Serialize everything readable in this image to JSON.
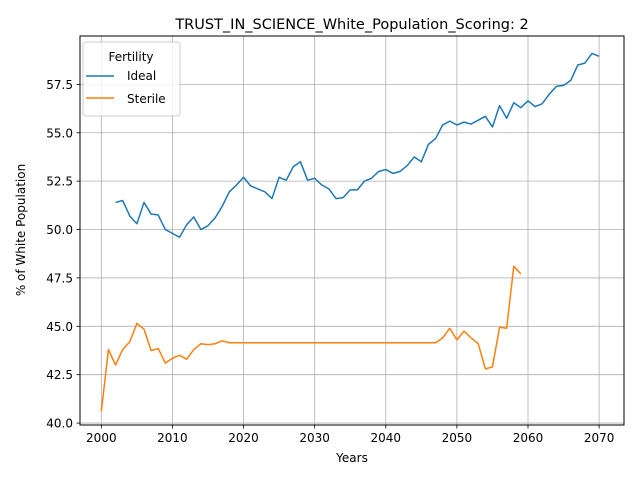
{
  "chart_data": {
    "type": "line",
    "title": "TRUST_IN_SCIENCE_White_Population_Scoring: 2",
    "xlabel": "Years",
    "ylabel": "% of White Population",
    "xlim": [
      1997,
      2073.5
    ],
    "ylim": [
      39.9,
      60.0
    ],
    "xticks": [
      2000,
      2010,
      2020,
      2030,
      2040,
      2050,
      2060,
      2070
    ],
    "yticks": [
      40.0,
      42.5,
      45.0,
      47.5,
      50.0,
      52.5,
      55.0,
      57.5
    ],
    "ytick_labels": [
      "40.0",
      "42.5",
      "45.0",
      "47.5",
      "50.0",
      "52.5",
      "55.0",
      "57.5"
    ],
    "grid": true,
    "legend": {
      "title": "Fertility",
      "position": "top-left"
    },
    "series": [
      {
        "name": "Ideal",
        "color": "#1f77b4",
        "x": [
          2002,
          2003,
          2004,
          2005,
          2006,
          2007,
          2008,
          2009,
          2010,
          2011,
          2012,
          2013,
          2014,
          2015,
          2016,
          2017,
          2018,
          2019,
          2020,
          2021,
          2022,
          2023,
          2024,
          2025,
          2026,
          2027,
          2028,
          2029,
          2030,
          2031,
          2032,
          2033,
          2034,
          2035,
          2036,
          2037,
          2038,
          2039,
          2040,
          2041,
          2042,
          2043,
          2044,
          2045,
          2046,
          2047,
          2048,
          2049,
          2050,
          2051,
          2052,
          2053,
          2054,
          2055,
          2056,
          2057,
          2058,
          2059,
          2060,
          2061,
          2062,
          2063,
          2064,
          2065,
          2066,
          2067,
          2068,
          2069,
          2070
        ],
        "y": [
          51.4,
          51.5,
          50.7,
          50.3,
          51.4,
          50.8,
          50.75,
          50.0,
          49.8,
          49.6,
          50.25,
          50.65,
          50.0,
          50.2,
          50.6,
          51.2,
          51.95,
          52.3,
          52.7,
          52.25,
          52.1,
          51.95,
          51.6,
          52.7,
          52.55,
          53.25,
          53.5,
          52.55,
          52.65,
          52.3,
          52.1,
          51.6,
          51.65,
          52.05,
          52.05,
          52.5,
          52.65,
          53.0,
          53.1,
          52.9,
          53.0,
          53.3,
          53.75,
          53.5,
          54.4,
          54.7,
          55.4,
          55.6,
          55.4,
          55.55,
          55.45,
          55.65,
          55.85,
          55.3,
          56.4,
          55.75,
          56.55,
          56.3,
          56.65,
          56.35,
          56.5,
          57.0,
          57.4,
          57.45,
          57.7,
          58.5,
          58.6,
          59.1,
          58.95
        ]
      },
      {
        "name": "Sterile",
        "color": "#ff7f0e",
        "x": [
          2000,
          2001,
          2002,
          2003,
          2004,
          2005,
          2006,
          2007,
          2008,
          2009,
          2010,
          2011,
          2012,
          2013,
          2014,
          2015,
          2016,
          2017,
          2018,
          2019,
          2020,
          2021,
          2022,
          2023,
          2024,
          2025,
          2026,
          2027,
          2028,
          2029,
          2030,
          2031,
          2032,
          2033,
          2034,
          2035,
          2036,
          2037,
          2038,
          2039,
          2040,
          2041,
          2042,
          2043,
          2044,
          2045,
          2046,
          2047,
          2048,
          2049,
          2050,
          2051,
          2052,
          2053,
          2054,
          2055,
          2056,
          2057,
          2058,
          2059
        ],
        "y": [
          40.6,
          43.8,
          43.0,
          43.8,
          44.2,
          45.15,
          44.85,
          43.75,
          43.85,
          43.1,
          43.35,
          43.5,
          43.3,
          43.8,
          44.1,
          44.05,
          44.1,
          44.25,
          44.15,
          44.15,
          44.15,
          44.15,
          44.15,
          44.15,
          44.15,
          44.15,
          44.15,
          44.15,
          44.15,
          44.15,
          44.15,
          44.15,
          44.15,
          44.15,
          44.15,
          44.15,
          44.15,
          44.15,
          44.15,
          44.15,
          44.15,
          44.15,
          44.15,
          44.15,
          44.15,
          44.15,
          44.15,
          44.15,
          44.4,
          44.9,
          44.3,
          44.75,
          44.4,
          44.1,
          42.8,
          42.9,
          44.95,
          44.9,
          48.1,
          47.7
        ]
      }
    ]
  }
}
